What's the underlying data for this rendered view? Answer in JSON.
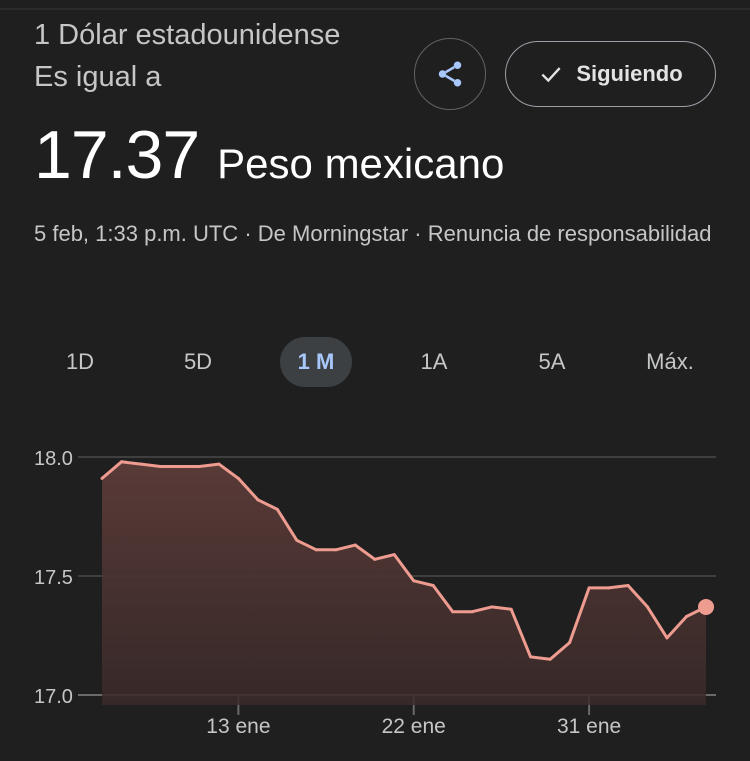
{
  "header": {
    "from_text": "1 Dólar estadounidense Es igual a",
    "rate_value": "17.37",
    "rate_currency": "Peso mexicano",
    "share_icon": "share-icon",
    "follow_label": "Siguiendo",
    "follow_icon": "check-icon"
  },
  "meta": {
    "timestamp": "5 feb, 1:33 p.m. UTC",
    "source": "De Morningstar",
    "disclaimer": "Renuncia de responsabilidad",
    "separator": "·"
  },
  "tabs": [
    {
      "label": "1D",
      "active": false
    },
    {
      "label": "5D",
      "active": false
    },
    {
      "label": "1 M",
      "active": true
    },
    {
      "label": "1A",
      "active": false
    },
    {
      "label": "5A",
      "active": false
    },
    {
      "label": "Máx.",
      "active": false
    }
  ],
  "colors": {
    "line": "#ee9b90",
    "fill": "#5c3c39",
    "accent": "#a8c7fa",
    "grid": "#4a4a4a"
  },
  "chart_data": {
    "type": "area",
    "title": "",
    "xlabel": "",
    "ylabel": "",
    "ylim": [
      17.0,
      18.0
    ],
    "yticks": [
      "18.0",
      "17.5",
      "17.0"
    ],
    "yticks_values": [
      18.0,
      17.5,
      17.0
    ],
    "xticks": [
      "13 ene",
      "22 ene",
      "31 ene"
    ],
    "xticks_dates": [
      "2024-01-13",
      "2024-01-22",
      "2024-01-31"
    ],
    "grid": true,
    "series": [
      {
        "name": "",
        "points": [
          [
            "2024-01-06",
            17.91
          ],
          [
            "2024-01-07",
            17.98
          ],
          [
            "2024-01-08",
            17.97
          ],
          [
            "2024-01-09",
            17.96
          ],
          [
            "2024-01-10",
            17.96
          ],
          [
            "2024-01-11",
            17.96
          ],
          [
            "2024-01-12",
            17.97
          ],
          [
            "2024-01-13",
            17.91
          ],
          [
            "2024-01-14",
            17.82
          ],
          [
            "2024-01-15",
            17.78
          ],
          [
            "2024-01-16",
            17.65
          ],
          [
            "2024-01-17",
            17.61
          ],
          [
            "2024-01-18",
            17.61
          ],
          [
            "2024-01-19",
            17.63
          ],
          [
            "2024-01-20",
            17.57
          ],
          [
            "2024-01-21",
            17.59
          ],
          [
            "2024-01-22",
            17.48
          ],
          [
            "2024-01-23",
            17.46
          ],
          [
            "2024-01-24",
            17.35
          ],
          [
            "2024-01-25",
            17.35
          ],
          [
            "2024-01-26",
            17.37
          ],
          [
            "2024-01-27",
            17.36
          ],
          [
            "2024-01-28",
            17.16
          ],
          [
            "2024-01-29",
            17.15
          ],
          [
            "2024-01-30",
            17.22
          ],
          [
            "2024-01-31",
            17.45
          ],
          [
            "2024-02-01",
            17.45
          ],
          [
            "2024-02-02",
            17.46
          ],
          [
            "2024-02-03",
            17.37
          ],
          [
            "2024-02-04",
            17.24
          ],
          [
            "2024-02-05",
            17.33
          ],
          [
            "2024-02-06",
            17.37
          ]
        ]
      }
    ]
  }
}
